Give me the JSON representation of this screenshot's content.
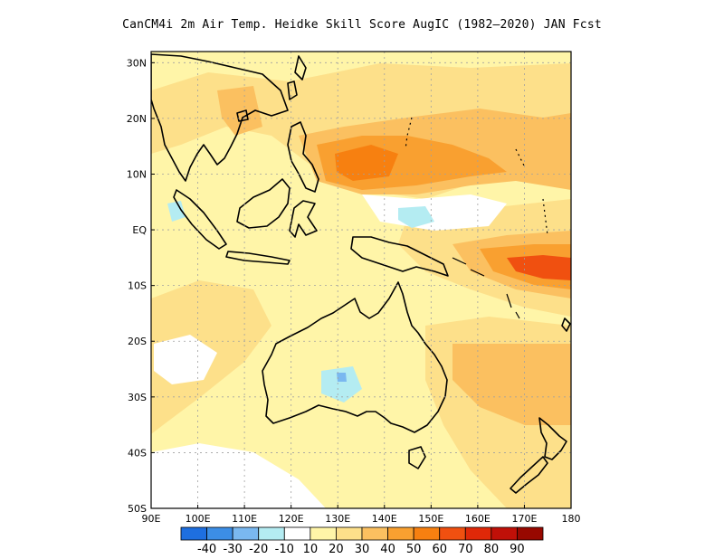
{
  "title": "CanCM4i  2m Air Temp. Heidke Skill Score AugIC (1982–2020) JAN Fcst",
  "map": {
    "lon_range": [
      90,
      180
    ],
    "lat_range": [
      -50,
      32
    ],
    "lon_ticks": [
      "90E",
      "100E",
      "110E",
      "120E",
      "130E",
      "140E",
      "150E",
      "160E",
      "170E",
      "180"
    ],
    "lat_ticks": [
      "30N",
      "20N",
      "10N",
      "EQ",
      "10S",
      "20S",
      "30S",
      "40S",
      "50S"
    ],
    "grid": true
  },
  "colorbar": {
    "labels": [
      "-40",
      "-30",
      "-20",
      "-10",
      "10",
      "20",
      "30",
      "40",
      "50",
      "60",
      "70",
      "80",
      "90"
    ],
    "colors": [
      "#1e6fe0",
      "#3c8ee6",
      "#7ab8f0",
      "#b4ecf2",
      "#ffffff",
      "#fff5a8",
      "#fde08a",
      "#fbc060",
      "#f9a030",
      "#f78010",
      "#f05010",
      "#e02808",
      "#c01008",
      "#980800"
    ]
  },
  "fields": {
    "background_color": "#fff5a8",
    "land_color": "#ffffff"
  }
}
